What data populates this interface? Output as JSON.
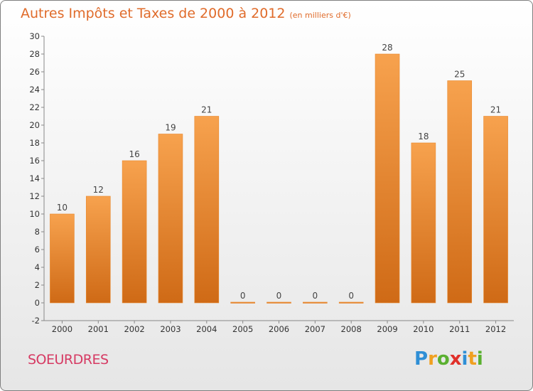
{
  "chart_data": {
    "type": "bar",
    "title": "Autres Impôts et Taxes de 2000 à 2012",
    "subtitle": "(en milliers d'€)",
    "categories": [
      "2000",
      "2001",
      "2002",
      "2003",
      "2004",
      "2005",
      "2006",
      "2007",
      "2008",
      "2009",
      "2010",
      "2011",
      "2012"
    ],
    "values": [
      10,
      12,
      16,
      19,
      21,
      0,
      0,
      0,
      0,
      28,
      18,
      25,
      21
    ],
    "value_labels": [
      "10",
      "12",
      "16",
      "19",
      "21",
      "0",
      "0",
      "0",
      "0",
      "28",
      "18",
      "25",
      "21"
    ],
    "ylim": [
      -2,
      30
    ],
    "yticks": [
      -2,
      0,
      2,
      4,
      6,
      8,
      10,
      12,
      14,
      16,
      18,
      20,
      22,
      24,
      26,
      28,
      30
    ],
    "grid": false,
    "bar_color": "#f08a30",
    "xlabel": "",
    "ylabel": ""
  },
  "footer": {
    "commune": "SOEURDRES",
    "logo": {
      "letters": [
        "P",
        "r",
        "o",
        "x",
        "i",
        "t",
        "i"
      ],
      "colors": [
        "#2f8fd6",
        "#f0a020",
        "#5ab030",
        "#e0302a",
        "#2f8fd6",
        "#f0a020",
        "#5ab030"
      ]
    }
  },
  "colors": {
    "title": "#e06b2a",
    "commune": "#d63a63"
  }
}
